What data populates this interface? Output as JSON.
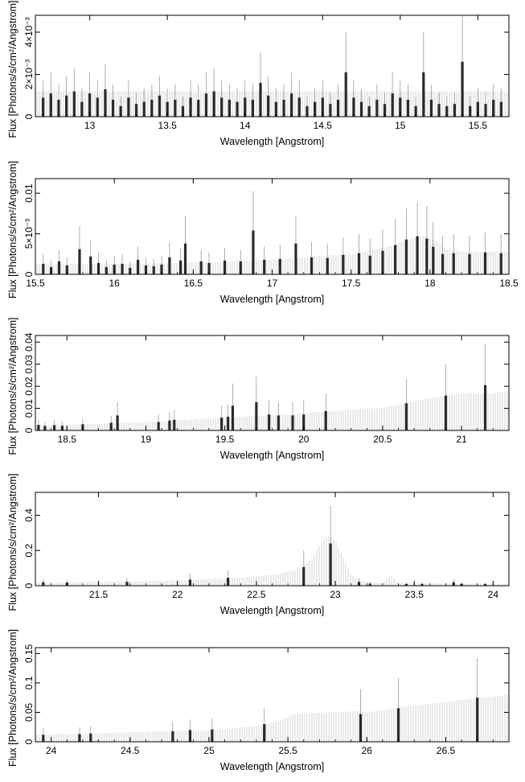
{
  "chart_data": [
    {
      "type": "line",
      "xlabel": "Wavelength [Angstrom]",
      "ylabel": "Flux [Photons/s/cm²/Angstrom]",
      "xlim": [
        12.65,
        15.7
      ],
      "ylim": [
        0,
        0.0048
      ],
      "xticks": [
        {
          "v": 13,
          "label": "13"
        },
        {
          "v": 13.5,
          "label": "13.5"
        },
        {
          "v": 14,
          "label": "14"
        },
        {
          "v": 14.5,
          "label": "14.5"
        },
        {
          "v": 15,
          "label": "15"
        },
        {
          "v": 15.5,
          "label": "15.5"
        }
      ],
      "yticks": [
        {
          "v": 0,
          "label": "0"
        },
        {
          "v": 0.002,
          "label": "2×10⁻³"
        },
        {
          "v": 0.004,
          "label": "4×10⁻³"
        }
      ],
      "model": [
        [
          12.65,
          0.0012
        ],
        [
          15.7,
          0.0012
        ]
      ],
      "data": [
        [
          12.7,
          0.0009
        ],
        [
          12.75,
          0.0011
        ],
        [
          12.8,
          0.0008
        ],
        [
          12.85,
          0.001
        ],
        [
          12.9,
          0.0012
        ],
        [
          12.95,
          0.0007
        ],
        [
          13.0,
          0.0011
        ],
        [
          13.05,
          0.0009
        ],
        [
          13.1,
          0.0013
        ],
        [
          13.15,
          0.0008
        ],
        [
          13.2,
          0.0005
        ],
        [
          13.25,
          0.0009
        ],
        [
          13.3,
          0.0006
        ],
        [
          13.35,
          0.0007
        ],
        [
          13.4,
          0.0008
        ],
        [
          13.45,
          0.001
        ],
        [
          13.5,
          0.0007
        ],
        [
          13.55,
          0.0008
        ],
        [
          13.6,
          0.0005
        ],
        [
          13.65,
          0.0009
        ],
        [
          13.7,
          0.0008
        ],
        [
          13.75,
          0.0011
        ],
        [
          13.8,
          0.0012
        ],
        [
          13.85,
          0.0009
        ],
        [
          13.9,
          0.0008
        ],
        [
          13.95,
          0.0007
        ],
        [
          14.0,
          0.0009
        ],
        [
          14.05,
          0.0008
        ],
        [
          14.1,
          0.0016
        ],
        [
          14.15,
          0.001
        ],
        [
          14.2,
          0.0007
        ],
        [
          14.25,
          0.0008
        ],
        [
          14.3,
          0.0011
        ],
        [
          14.35,
          0.0009
        ],
        [
          14.4,
          0.0005
        ],
        [
          14.45,
          0.0007
        ],
        [
          14.5,
          0.0009
        ],
        [
          14.55,
          0.0006
        ],
        [
          14.6,
          0.0008
        ],
        [
          14.65,
          0.0021
        ],
        [
          14.7,
          0.0009
        ],
        [
          14.75,
          0.0007
        ],
        [
          14.8,
          0.0005
        ],
        [
          14.85,
          0.0008
        ],
        [
          14.9,
          0.0006
        ],
        [
          14.95,
          0.0011
        ],
        [
          15.0,
          0.0009
        ],
        [
          15.05,
          0.0008
        ],
        [
          15.1,
          0.0005
        ],
        [
          15.15,
          0.0021
        ],
        [
          15.2,
          0.0008
        ],
        [
          15.25,
          0.0006
        ],
        [
          15.3,
          0.0005
        ],
        [
          15.35,
          0.0006
        ],
        [
          15.4,
          0.0026
        ],
        [
          15.45,
          0.0005
        ],
        [
          15.5,
          0.0007
        ],
        [
          15.55,
          0.0006
        ],
        [
          15.6,
          0.0008
        ],
        [
          15.65,
          0.0007
        ]
      ]
    },
    {
      "type": "line",
      "xlabel": "Wavelength [Angstrom]",
      "ylabel": "Flux [Photons/s/cm²/Angstrom]",
      "xlim": [
        15.5,
        18.5
      ],
      "ylim": [
        0,
        0.0118
      ],
      "xticks": [
        {
          "v": 15.5,
          "label": "15.5"
        },
        {
          "v": 16,
          "label": "16"
        },
        {
          "v": 16.5,
          "label": "16.5"
        },
        {
          "v": 17,
          "label": "17"
        },
        {
          "v": 17.5,
          "label": "17.5"
        },
        {
          "v": 18,
          "label": "18"
        },
        {
          "v": 18.5,
          "label": "18.5"
        }
      ],
      "yticks": [
        {
          "v": 0,
          "label": "0"
        },
        {
          "v": 0.005,
          "label": "5×10⁻³"
        },
        {
          "v": 0.01,
          "label": "0.01"
        }
      ],
      "model": [
        [
          15.5,
          0.0012
        ],
        [
          16.5,
          0.0014
        ],
        [
          17.0,
          0.0018
        ],
        [
          17.5,
          0.0025
        ],
        [
          17.7,
          0.0032
        ],
        [
          17.85,
          0.0042
        ],
        [
          17.95,
          0.0048
        ],
        [
          18.05,
          0.004
        ],
        [
          18.1,
          0.0031
        ],
        [
          18.2,
          0.0028
        ],
        [
          18.5,
          0.0028
        ]
      ],
      "data": [
        [
          15.55,
          0.0013
        ],
        [
          15.6,
          0.0009
        ],
        [
          15.65,
          0.0016
        ],
        [
          15.7,
          0.0011
        ],
        [
          15.78,
          0.0031
        ],
        [
          15.85,
          0.0022
        ],
        [
          15.9,
          0.0014
        ],
        [
          15.95,
          0.0009
        ],
        [
          16.0,
          0.0012
        ],
        [
          16.05,
          0.0013
        ],
        [
          16.1,
          0.0008
        ],
        [
          16.15,
          0.0018
        ],
        [
          16.2,
          0.0011
        ],
        [
          16.25,
          0.001
        ],
        [
          16.3,
          0.0012
        ],
        [
          16.35,
          0.0021
        ],
        [
          16.42,
          0.0017
        ],
        [
          16.45,
          0.0038
        ],
        [
          16.55,
          0.0016
        ],
        [
          16.6,
          0.0014
        ],
        [
          16.7,
          0.0017
        ],
        [
          16.8,
          0.0016
        ],
        [
          16.88,
          0.0054
        ],
        [
          16.95,
          0.0018
        ],
        [
          17.05,
          0.0019
        ],
        [
          17.15,
          0.0038
        ],
        [
          17.25,
          0.0021
        ],
        [
          17.35,
          0.002
        ],
        [
          17.45,
          0.0024
        ],
        [
          17.55,
          0.0026
        ],
        [
          17.62,
          0.0023
        ],
        [
          17.7,
          0.0029
        ],
        [
          17.78,
          0.0036
        ],
        [
          17.85,
          0.0043
        ],
        [
          17.92,
          0.0047
        ],
        [
          17.98,
          0.0044
        ],
        [
          18.02,
          0.0034
        ],
        [
          18.08,
          0.0025
        ],
        [
          18.15,
          0.0026
        ],
        [
          18.25,
          0.0025
        ],
        [
          18.35,
          0.0027
        ],
        [
          18.45,
          0.0026
        ]
      ]
    },
    {
      "type": "line",
      "xlabel": "Wavelength [Angstrom]",
      "ylabel": "Flux [Photons/s/cm²/Angstrom]",
      "xlim": [
        18.3,
        21.3
      ],
      "ylim": [
        0,
        0.043
      ],
      "xticks": [
        {
          "v": 18.5,
          "label": "18.5"
        },
        {
          "v": 19,
          "label": "19"
        },
        {
          "v": 19.5,
          "label": "19.5"
        },
        {
          "v": 20,
          "label": "20"
        },
        {
          "v": 20.5,
          "label": "20.5"
        },
        {
          "v": 21,
          "label": "21"
        }
      ],
      "yticks": [
        {
          "v": 0,
          "label": "0"
        },
        {
          "v": 0.01,
          "label": "0.01"
        },
        {
          "v": 0.02,
          "label": "0.02"
        },
        {
          "v": 0.03,
          "label": "0.03"
        },
        {
          "v": 0.04,
          "label": "0.04"
        }
      ],
      "model": [
        [
          18.3,
          0.0025
        ],
        [
          18.6,
          0.0028
        ],
        [
          19.0,
          0.0038
        ],
        [
          19.5,
          0.0058
        ],
        [
          20.0,
          0.0078
        ],
        [
          20.5,
          0.0103
        ],
        [
          20.9,
          0.016
        ],
        [
          21.05,
          0.017
        ],
        [
          21.15,
          0.0165
        ],
        [
          21.3,
          0.0178
        ]
      ],
      "data": [
        [
          18.32,
          0.0025
        ],
        [
          18.36,
          0.002
        ],
        [
          18.42,
          0.0024
        ],
        [
          18.47,
          0.0021
        ],
        [
          18.6,
          0.0028
        ],
        [
          18.78,
          0.0035
        ],
        [
          18.82,
          0.0068
        ],
        [
          19.08,
          0.0038
        ],
        [
          19.15,
          0.0045
        ],
        [
          19.18,
          0.0048
        ],
        [
          19.48,
          0.0058
        ],
        [
          19.52,
          0.0062
        ],
        [
          19.55,
          0.0112
        ],
        [
          19.7,
          0.0128
        ],
        [
          19.78,
          0.0072
        ],
        [
          19.84,
          0.0068
        ],
        [
          19.93,
          0.0068
        ],
        [
          20.0,
          0.0072
        ],
        [
          20.14,
          0.0088
        ],
        [
          20.65,
          0.0123
        ],
        [
          20.9,
          0.0158
        ],
        [
          21.15,
          0.0205
        ]
      ]
    },
    {
      "type": "line",
      "xlabel": "Wavelength [Angstrom]",
      "ylabel": "Flux [Photons/s/cm²/Angstrom]",
      "xlim": [
        21.1,
        24.1
      ],
      "ylim": [
        0,
        0.53
      ],
      "xticks": [
        {
          "v": 21.5,
          "label": "21.5"
        },
        {
          "v": 22,
          "label": "22"
        },
        {
          "v": 22.5,
          "label": "22.5"
        },
        {
          "v": 23,
          "label": "23"
        },
        {
          "v": 23.5,
          "label": "23.5"
        },
        {
          "v": 24,
          "label": "24"
        }
      ],
      "yticks": [
        {
          "v": 0,
          "label": "0"
        },
        {
          "v": 0.2,
          "label": "0.2"
        },
        {
          "v": 0.4,
          "label": "0.4"
        }
      ],
      "model": [
        [
          21.1,
          0.02
        ],
        [
          21.5,
          0.022
        ],
        [
          22.0,
          0.03
        ],
        [
          22.4,
          0.045
        ],
        [
          22.6,
          0.06
        ],
        [
          22.75,
          0.09
        ],
        [
          22.85,
          0.15
        ],
        [
          22.92,
          0.26
        ],
        [
          22.96,
          0.28
        ],
        [
          23.0,
          0.26
        ],
        [
          23.05,
          0.16
        ],
        [
          23.1,
          0.06
        ],
        [
          23.15,
          0.025
        ],
        [
          23.3,
          0.015
        ],
        [
          23.35,
          0.06
        ],
        [
          23.4,
          0.015
        ],
        [
          24.1,
          0.01
        ]
      ],
      "data": [
        [
          21.15,
          0.02
        ],
        [
          21.3,
          0.018
        ],
        [
          21.68,
          0.022
        ],
        [
          22.08,
          0.035
        ],
        [
          22.32,
          0.045
        ],
        [
          22.8,
          0.105
        ],
        [
          22.97,
          0.24
        ],
        [
          23.15,
          0.022
        ],
        [
          23.22,
          0.012
        ],
        [
          23.45,
          0.01
        ],
        [
          23.55,
          0.01
        ],
        [
          23.75,
          0.02
        ],
        [
          23.8,
          0.01
        ],
        [
          23.95,
          0.01
        ]
      ]
    },
    {
      "type": "line",
      "xlabel": "Wavelength [Angstrom]",
      "ylabel": "Flux [Photons/s/cm²/Angstrom]",
      "xlim": [
        23.9,
        26.9
      ],
      "ylim": [
        0,
        0.16
      ],
      "xticks": [
        {
          "v": 24,
          "label": "24"
        },
        {
          "v": 24.5,
          "label": "24.5"
        },
        {
          "v": 25,
          "label": "25"
        },
        {
          "v": 25.5,
          "label": "25.5"
        },
        {
          "v": 26,
          "label": "26"
        },
        {
          "v": 26.5,
          "label": "26.5"
        }
      ],
      "yticks": [
        {
          "v": 0,
          "label": "0"
        },
        {
          "v": 0.05,
          "label": "0.05"
        },
        {
          "v": 0.1,
          "label": "0.1"
        },
        {
          "v": 0.15,
          "label": "0.15"
        }
      ],
      "model": [
        [
          23.9,
          0.012
        ],
        [
          24.5,
          0.016
        ],
        [
          25.0,
          0.02
        ],
        [
          25.3,
          0.026
        ],
        [
          25.45,
          0.036
        ],
        [
          25.55,
          0.048
        ],
        [
          25.95,
          0.052
        ],
        [
          26.0,
          0.05
        ],
        [
          26.2,
          0.058
        ],
        [
          26.5,
          0.068
        ],
        [
          26.9,
          0.08
        ]
      ],
      "data": [
        [
          23.95,
          0.012
        ],
        [
          24.18,
          0.013
        ],
        [
          24.25,
          0.014
        ],
        [
          24.77,
          0.018
        ],
        [
          24.88,
          0.02
        ],
        [
          25.02,
          0.021
        ],
        [
          25.35,
          0.03
        ],
        [
          25.96,
          0.047
        ],
        [
          26.2,
          0.057
        ],
        [
          26.7,
          0.075
        ]
      ]
    }
  ]
}
